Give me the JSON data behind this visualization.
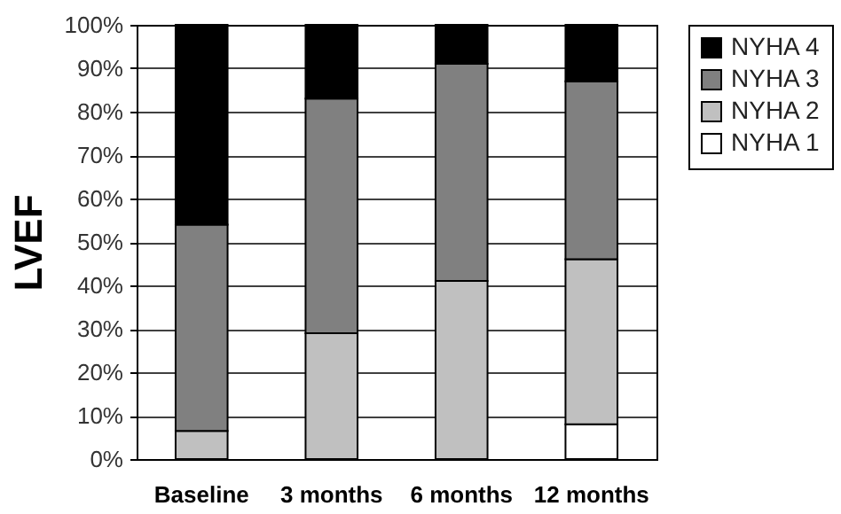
{
  "chart_data": {
    "type": "bar",
    "stacked": true,
    "ylabel": "LVEF",
    "categories": [
      "Baseline",
      "3 months",
      "6 months",
      "12 months"
    ],
    "series": [
      {
        "name": "NYHA 1",
        "color": "#ffffff",
        "values": [
          0,
          0,
          0,
          8
        ]
      },
      {
        "name": "NYHA 2",
        "color": "#c0c0c0",
        "values": [
          6.5,
          29,
          41,
          38
        ]
      },
      {
        "name": "NYHA 3",
        "color": "#808080",
        "values": [
          47.5,
          54,
          50,
          41
        ]
      },
      {
        "name": "NYHA 4",
        "color": "#000000",
        "values": [
          46,
          17,
          9,
          13
        ]
      }
    ],
    "ylim": [
      0,
      100
    ],
    "yticks": [
      {
        "value": 0,
        "label": "0%"
      },
      {
        "value": 10,
        "label": "10%"
      },
      {
        "value": 20,
        "label": "20%"
      },
      {
        "value": 30,
        "label": "30%"
      },
      {
        "value": 40,
        "label": "40%"
      },
      {
        "value": 50,
        "label": "50%"
      },
      {
        "value": 60,
        "label": "60%"
      },
      {
        "value": 70,
        "label": "70%"
      },
      {
        "value": 80,
        "label": "80%"
      },
      {
        "value": 90,
        "label": "90%"
      },
      {
        "value": 100,
        "label": "100%"
      }
    ],
    "grid": "y",
    "legend": "right"
  }
}
